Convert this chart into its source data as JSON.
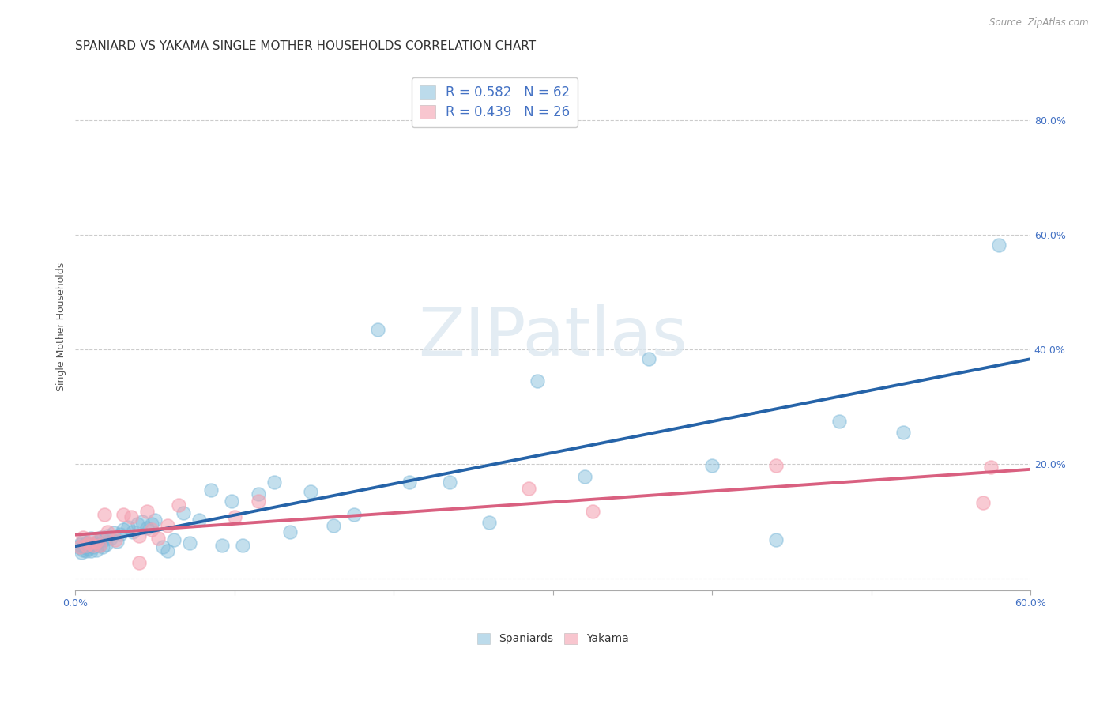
{
  "title": "SPANIARD VS YAKAMA SINGLE MOTHER HOUSEHOLDS CORRELATION CHART",
  "source": "Source: ZipAtlas.com",
  "ylabel": "Single Mother Households",
  "xlim": [
    0.0,
    0.6
  ],
  "ylim": [
    -0.02,
    0.9
  ],
  "xticks": [
    0.0,
    0.1,
    0.2,
    0.3,
    0.4,
    0.5,
    0.6
  ],
  "xticklabels": [
    "0.0%",
    "",
    "",
    "",
    "",
    "",
    "60.0%"
  ],
  "yticks": [
    0.0,
    0.2,
    0.4,
    0.6,
    0.8
  ],
  "yticklabels": [
    "",
    "20.0%",
    "40.0%",
    "60.0%",
    "80.0%"
  ],
  "grid_color": "#cccccc",
  "background_color": "#ffffff",
  "watermark_text": "ZIPatlas",
  "spaniards_color": "#7ab8d9",
  "yakama_color": "#f4a0b0",
  "spaniards_line_color": "#2563a8",
  "yakama_line_color": "#d96080",
  "spaniards_R": 0.582,
  "spaniards_N": 62,
  "yakama_R": 0.439,
  "yakama_N": 26,
  "spaniards_x": [
    0.002,
    0.003,
    0.004,
    0.005,
    0.005,
    0.006,
    0.007,
    0.007,
    0.008,
    0.009,
    0.01,
    0.01,
    0.011,
    0.012,
    0.013,
    0.014,
    0.015,
    0.016,
    0.017,
    0.018,
    0.019,
    0.02,
    0.022,
    0.024,
    0.026,
    0.028,
    0.03,
    0.033,
    0.036,
    0.039,
    0.042,
    0.045,
    0.048,
    0.05,
    0.055,
    0.058,
    0.062,
    0.068,
    0.072,
    0.078,
    0.085,
    0.092,
    0.098,
    0.105,
    0.115,
    0.125,
    0.135,
    0.148,
    0.162,
    0.175,
    0.19,
    0.21,
    0.235,
    0.26,
    0.29,
    0.32,
    0.36,
    0.4,
    0.44,
    0.48,
    0.52,
    0.58
  ],
  "spaniards_y": [
    0.055,
    0.06,
    0.045,
    0.05,
    0.065,
    0.055,
    0.048,
    0.062,
    0.052,
    0.058,
    0.048,
    0.07,
    0.055,
    0.06,
    0.05,
    0.065,
    0.058,
    0.072,
    0.055,
    0.068,
    0.06,
    0.075,
    0.07,
    0.08,
    0.065,
    0.078,
    0.085,
    0.09,
    0.082,
    0.095,
    0.1,
    0.088,
    0.095,
    0.102,
    0.055,
    0.048,
    0.068,
    0.115,
    0.062,
    0.102,
    0.155,
    0.058,
    0.135,
    0.058,
    0.148,
    0.168,
    0.082,
    0.152,
    0.092,
    0.112,
    0.435,
    0.168,
    0.168,
    0.098,
    0.345,
    0.178,
    0.384,
    0.198,
    0.068,
    0.275,
    0.255,
    0.582
  ],
  "yakama_x": [
    0.003,
    0.005,
    0.007,
    0.009,
    0.011,
    0.013,
    0.015,
    0.018,
    0.02,
    0.025,
    0.03,
    0.035,
    0.04,
    0.045,
    0.048,
    0.052,
    0.058,
    0.065,
    0.1,
    0.115,
    0.285,
    0.325,
    0.44,
    0.57,
    0.575,
    0.04
  ],
  "yakama_y": [
    0.055,
    0.072,
    0.058,
    0.062,
    0.058,
    0.065,
    0.058,
    0.112,
    0.082,
    0.068,
    0.112,
    0.108,
    0.075,
    0.118,
    0.085,
    0.07,
    0.092,
    0.128,
    0.108,
    0.135,
    0.158,
    0.118,
    0.198,
    0.132,
    0.195,
    0.028
  ],
  "title_fontsize": 11,
  "label_fontsize": 9,
  "tick_fontsize": 9,
  "tick_color": "#4472c4",
  "legend_fontsize": 12
}
